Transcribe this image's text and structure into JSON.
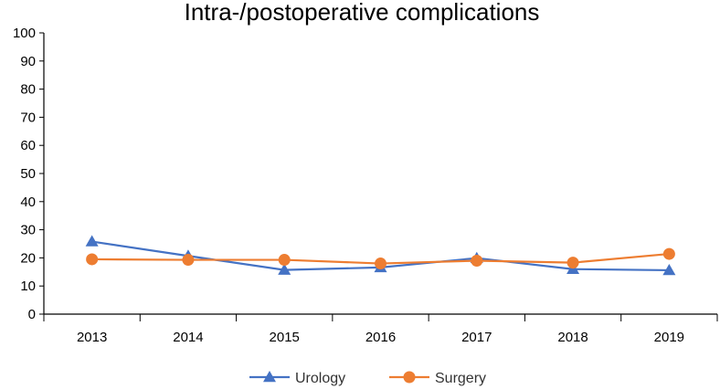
{
  "chart_data": {
    "type": "line",
    "title": "Intra-/postoperative complications",
    "xlabel": "",
    "ylabel": "",
    "categories": [
      "2013",
      "2014",
      "2015",
      "2016",
      "2017",
      "2018",
      "2019"
    ],
    "ylim": [
      0,
      100
    ],
    "yticks": [
      0,
      10,
      20,
      30,
      40,
      50,
      60,
      70,
      80,
      90,
      100
    ],
    "grid": false,
    "legend_position": "bottom",
    "series": [
      {
        "name": "Urology",
        "color": "#4472C4",
        "marker": "triangle",
        "values": [
          25.8,
          20.7,
          15.7,
          16.6,
          19.9,
          16.0,
          15.6
        ]
      },
      {
        "name": "Surgery",
        "color": "#ED7D31",
        "marker": "circle",
        "values": [
          19.5,
          19.3,
          19.3,
          18.0,
          19.0,
          18.3,
          21.4
        ]
      }
    ]
  }
}
